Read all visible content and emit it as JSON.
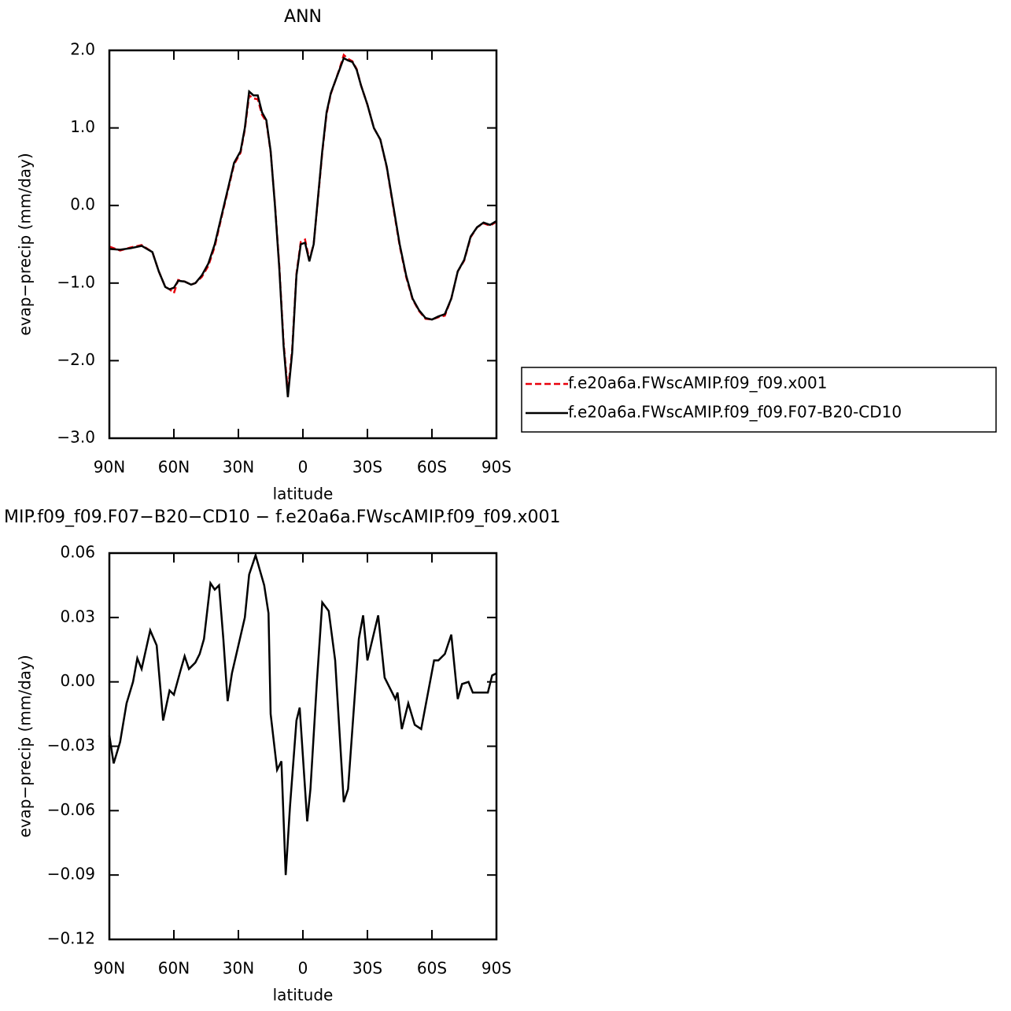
{
  "chart_data": [
    {
      "type": "line",
      "title": "ANN",
      "xlabel": "latitude",
      "ylabel": "evap−precip (mm/day)",
      "x": [
        90,
        85,
        80,
        75,
        70,
        67,
        64,
        62,
        60,
        58,
        55,
        52,
        50,
        47,
        44,
        41,
        38,
        35,
        32,
        29,
        27,
        25,
        23,
        21,
        19,
        17,
        15,
        13,
        11,
        9,
        7,
        5,
        3,
        1,
        -1,
        -3,
        -5,
        -7,
        -9,
        -11,
        -13,
        -15,
        -17,
        -19,
        -21,
        -23,
        -25,
        -27,
        -30,
        -33,
        -36,
        -39,
        -42,
        -45,
        -48,
        -51,
        -54,
        -57,
        -60,
        -63,
        -66,
        -69,
        -72,
        -75,
        -78,
        -81,
        -84,
        -87,
        -90
      ],
      "series": [
        {
          "name": "f.e20a6a.FWscAMIP.f09_f09.x001",
          "color": "#e8000b",
          "dashed": true,
          "values": [
            -0.53,
            -0.58,
            -0.54,
            -0.51,
            -0.6,
            -0.85,
            -1.05,
            -1.08,
            -1.13,
            -0.96,
            -0.98,
            -1.02,
            -1.0,
            -0.92,
            -0.78,
            -0.53,
            -0.17,
            0.18,
            0.53,
            0.68,
            0.98,
            1.42,
            1.38,
            1.37,
            1.17,
            1.08,
            0.69,
            0.02,
            -0.77,
            -1.76,
            -2.4,
            -1.86,
            -0.88,
            -0.47,
            -0.44,
            -0.7,
            -0.5,
            0.08,
            0.68,
            1.18,
            1.44,
            1.6,
            1.76,
            1.94,
            1.89,
            1.86,
            1.76,
            1.55,
            1.3,
            1.0,
            0.85,
            0.49,
            -0.02,
            -0.52,
            -0.92,
            -1.21,
            -1.36,
            -1.46,
            -1.47,
            -1.44,
            -1.42,
            -1.2,
            -0.85,
            -0.71,
            -0.41,
            -0.28,
            -0.23,
            -0.26,
            -0.21
          ]
        },
        {
          "name": "f.e20a6a.FWscAMIP.f09_f09.F07-B20-CD10",
          "color": "#000000",
          "dashed": false,
          "values": [
            -0.56,
            -0.57,
            -0.55,
            -0.52,
            -0.6,
            -0.85,
            -1.05,
            -1.08,
            -1.06,
            -0.97,
            -0.98,
            -1.02,
            -1.0,
            -0.9,
            -0.75,
            -0.5,
            -0.15,
            0.2,
            0.55,
            0.7,
            1.0,
            1.47,
            1.42,
            1.42,
            1.2,
            1.1,
            0.7,
            0.0,
            -0.8,
            -1.8,
            -2.47,
            -1.9,
            -0.9,
            -0.5,
            -0.48,
            -0.72,
            -0.5,
            0.1,
            0.7,
            1.2,
            1.45,
            1.6,
            1.75,
            1.9,
            1.87,
            1.85,
            1.75,
            1.55,
            1.3,
            1.0,
            0.85,
            0.5,
            0.0,
            -0.5,
            -0.9,
            -1.2,
            -1.35,
            -1.45,
            -1.47,
            -1.43,
            -1.4,
            -1.2,
            -0.85,
            -0.7,
            -0.4,
            -0.28,
            -0.22,
            -0.25,
            -0.2
          ]
        }
      ],
      "xlim": [
        90,
        -90
      ],
      "xticks": [
        {
          "value": 90,
          "label": "90N"
        },
        {
          "value": 60,
          "label": "60N"
        },
        {
          "value": 30,
          "label": "30N"
        },
        0,
        {
          "value": -30,
          "label": "30S"
        },
        {
          "value": -60,
          "label": "60S"
        },
        {
          "value": -90,
          "label": "90S"
        }
      ],
      "ylim": [
        -3.0,
        2.0
      ],
      "yticks": [
        {
          "value": 2.0,
          "label": "2.0"
        },
        {
          "value": 1.0,
          "label": "1.0"
        },
        {
          "value": 0.0,
          "label": "0.0"
        },
        {
          "value": -1.0,
          "label": "−1.0"
        },
        {
          "value": -2.0,
          "label": "−2.0"
        },
        {
          "value": -3.0,
          "label": "−3.0"
        }
      ],
      "legend": "right"
    },
    {
      "type": "line",
      "title": "MIP.f09_f09.F07−B20−CD10 − f.e20a6a.FWscAMIP.f09_f09.x001",
      "xlabel": "latitude",
      "ylabel": "evap−precip (mm/day)",
      "x": [
        90,
        88,
        85,
        82,
        79,
        77,
        75,
        71,
        68,
        65,
        62,
        60,
        57,
        55,
        53,
        50,
        48,
        46,
        43,
        41,
        39,
        37,
        35,
        33,
        30,
        27,
        25,
        22,
        18,
        16,
        15,
        12,
        10,
        8,
        6,
        3,
        1.5,
        -2,
        -3.5,
        -6.5,
        -9,
        -12,
        -15,
        -19,
        -21,
        -26,
        -28,
        -30,
        -35,
        -38,
        -43,
        -44,
        -46,
        -49,
        -52,
        -55,
        -61,
        -63,
        -66,
        -69,
        -72,
        -74,
        -77,
        -79,
        -86,
        -88,
        -90
      ],
      "series": [
        {
          "color": "#000000",
          "dashed": false,
          "values": [
            -0.025,
            -0.038,
            -0.028,
            -0.01,
            0.0,
            0.011,
            0.006,
            0.024,
            0.017,
            -0.018,
            -0.004,
            -0.006,
            0.005,
            0.012,
            0.006,
            0.009,
            0.013,
            0.02,
            0.046,
            0.043,
            0.045,
            0.02,
            -0.009,
            0.004,
            0.017,
            0.03,
            0.05,
            0.059,
            0.045,
            0.032,
            -0.015,
            -0.041,
            -0.037,
            -0.09,
            -0.058,
            -0.018,
            -0.012,
            -0.065,
            -0.05,
            0.0,
            0.037,
            0.033,
            0.01,
            -0.056,
            -0.05,
            0.02,
            0.031,
            0.01,
            0.031,
            0.002,
            -0.008,
            -0.005,
            -0.022,
            -0.01,
            -0.02,
            -0.022,
            0.01,
            0.01,
            0.013,
            0.022,
            -0.008,
            -0.001,
            0.0,
            -0.005,
            -0.005,
            0.003,
            0.004
          ]
        }
      ],
      "xlim": [
        90,
        -90
      ],
      "xticks": [
        {
          "value": 90,
          "label": "90N"
        },
        {
          "value": 60,
          "label": "60N"
        },
        {
          "value": 30,
          "label": "30N"
        },
        0,
        {
          "value": -30,
          "label": "30S"
        },
        {
          "value": -60,
          "label": "60S"
        },
        {
          "value": -90,
          "label": "90S"
        }
      ],
      "ylim": [
        -0.12,
        0.06
      ],
      "yticks": [
        {
          "value": 0.06,
          "label": "0.06"
        },
        {
          "value": 0.03,
          "label": "0.03"
        },
        {
          "value": 0.0,
          "label": "0.00"
        },
        {
          "value": -0.03,
          "label": "−0.03"
        },
        {
          "value": -0.06,
          "label": "−0.06"
        },
        {
          "value": -0.09,
          "label": "−0.09"
        },
        {
          "value": -0.12,
          "label": "−0.12"
        }
      ]
    }
  ]
}
